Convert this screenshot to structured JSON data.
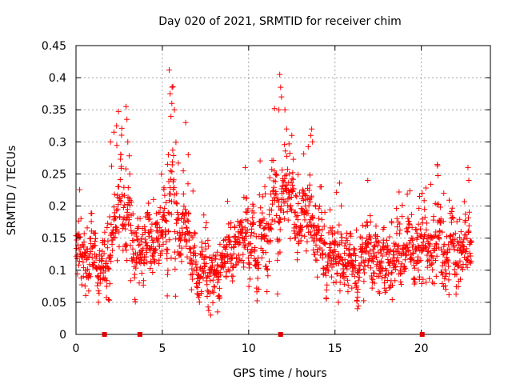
{
  "chart_data": {
    "type": "scatter",
    "title": "Day 020 of 2021, SRMTID for receiver chim",
    "xlabel": "GPS time / hours",
    "ylabel": "SRMTID / TECUs",
    "xlim": [
      0,
      24
    ],
    "ylim": [
      0,
      0.45
    ],
    "x_ticks": [
      0,
      5,
      10,
      15,
      20
    ],
    "x_tick_labels": [
      "0",
      "5",
      "10",
      "15",
      "20"
    ],
    "y_ticks": [
      0,
      0.05,
      0.1,
      0.15,
      0.2,
      0.25,
      0.3,
      0.35,
      0.4,
      0.45
    ],
    "y_tick_labels": [
      "0",
      "0.05",
      "0.1",
      "0.15",
      "0.2",
      "0.25",
      "0.3",
      "0.35",
      "0.4",
      "0.45"
    ],
    "grid": true,
    "marker": "plus",
    "series_color": "#ff0000",
    "marker_color": "#e00000",
    "baseline_markers_x": [
      1.65,
      3.7,
      11.85,
      20.05
    ],
    "profile": [
      [
        0.0,
        0.13,
        0.035
      ],
      [
        0.5,
        0.125,
        0.035
      ],
      [
        1.0,
        0.12,
        0.03
      ],
      [
        1.5,
        0.11,
        0.03
      ],
      [
        2.0,
        0.12,
        0.035
      ],
      [
        2.4,
        0.19,
        0.05
      ],
      [
        3.0,
        0.18,
        0.05
      ],
      [
        3.5,
        0.12,
        0.035
      ],
      [
        4.0,
        0.115,
        0.03
      ],
      [
        4.5,
        0.14,
        0.035
      ],
      [
        5.0,
        0.15,
        0.04
      ],
      [
        5.5,
        0.2,
        0.06
      ],
      [
        6.0,
        0.16,
        0.04
      ],
      [
        6.5,
        0.14,
        0.04
      ],
      [
        7.0,
        0.11,
        0.03
      ],
      [
        7.5,
        0.1,
        0.03
      ],
      [
        8.0,
        0.085,
        0.025
      ],
      [
        8.5,
        0.11,
        0.03
      ],
      [
        9.0,
        0.14,
        0.035
      ],
      [
        9.5,
        0.14,
        0.035
      ],
      [
        10.0,
        0.15,
        0.04
      ],
      [
        10.5,
        0.15,
        0.04
      ],
      [
        11.0,
        0.16,
        0.04
      ],
      [
        11.5,
        0.2,
        0.05
      ],
      [
        12.0,
        0.2,
        0.05
      ],
      [
        12.5,
        0.19,
        0.045
      ],
      [
        13.0,
        0.18,
        0.045
      ],
      [
        13.5,
        0.2,
        0.05
      ],
      [
        14.0,
        0.15,
        0.04
      ],
      [
        14.5,
        0.13,
        0.035
      ],
      [
        15.0,
        0.12,
        0.035
      ],
      [
        15.5,
        0.11,
        0.035
      ],
      [
        16.0,
        0.1,
        0.03
      ],
      [
        16.5,
        0.13,
        0.035
      ],
      [
        17.0,
        0.13,
        0.035
      ],
      [
        17.5,
        0.12,
        0.035
      ],
      [
        18.0,
        0.11,
        0.035
      ],
      [
        18.5,
        0.12,
        0.035
      ],
      [
        19.0,
        0.13,
        0.035
      ],
      [
        19.5,
        0.13,
        0.035
      ],
      [
        20.0,
        0.14,
        0.035
      ],
      [
        20.5,
        0.14,
        0.035
      ],
      [
        21.0,
        0.14,
        0.035
      ],
      [
        21.5,
        0.13,
        0.035
      ],
      [
        22.0,
        0.14,
        0.035
      ],
      [
        22.5,
        0.14,
        0.04
      ],
      [
        22.9,
        0.11,
        0.03
      ]
    ],
    "outliers": [
      [
        2.0,
        0.3
      ],
      [
        2.2,
        0.315
      ],
      [
        2.35,
        0.325
      ],
      [
        2.9,
        0.355
      ],
      [
        2.95,
        0.335
      ],
      [
        3.0,
        0.3
      ],
      [
        2.6,
        0.28
      ],
      [
        5.4,
        0.412
      ],
      [
        5.45,
        0.375
      ],
      [
        5.55,
        0.36
      ],
      [
        5.7,
        0.35
      ],
      [
        5.35,
        0.28
      ],
      [
        5.3,
        0.265
      ],
      [
        6.35,
        0.33
      ],
      [
        6.5,
        0.28
      ],
      [
        11.8,
        0.405
      ],
      [
        11.85,
        0.385
      ],
      [
        11.9,
        0.37
      ],
      [
        11.75,
        0.35
      ],
      [
        12.1,
        0.35
      ],
      [
        12.2,
        0.32
      ],
      [
        12.5,
        0.31
      ],
      [
        13.6,
        0.31
      ],
      [
        13.65,
        0.32
      ],
      [
        13.7,
        0.3
      ],
      [
        9.8,
        0.26
      ],
      [
        14.2,
        0.23
      ],
      [
        22.7,
        0.26
      ],
      [
        22.75,
        0.24
      ],
      [
        21.3,
        0.22
      ],
      [
        19.9,
        0.215
      ],
      [
        20.05,
        0.22
      ],
      [
        16.9,
        0.24
      ],
      [
        7.8,
        0.03
      ],
      [
        16.3,
        0.04
      ],
      [
        15.2,
        0.05
      ],
      [
        1.3,
        0.05
      ],
      [
        8.2,
        0.035
      ]
    ],
    "sample_interval_hours": 0.0125
  }
}
